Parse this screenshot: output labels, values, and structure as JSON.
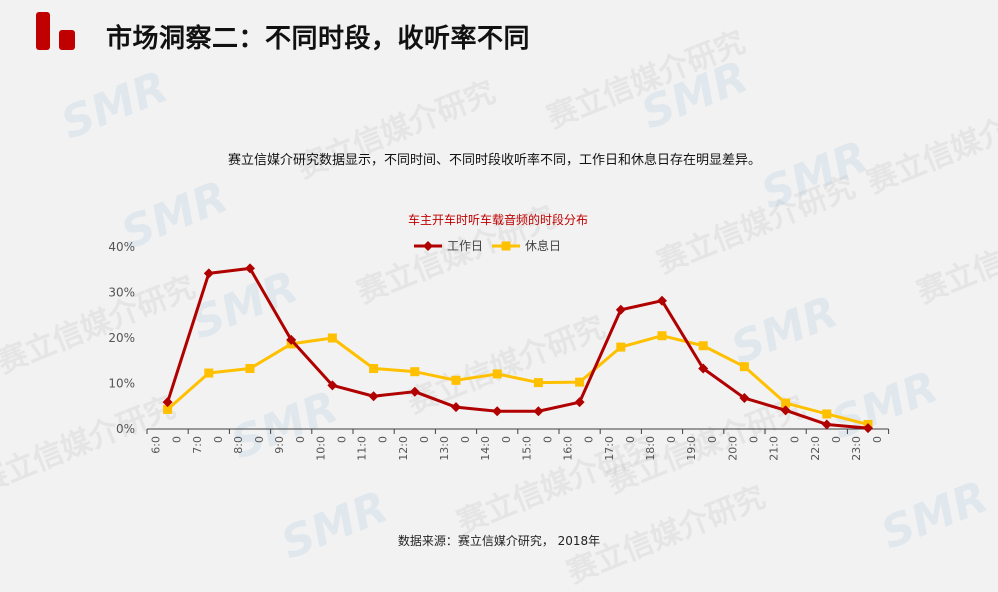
{
  "title": "市场洞察二：不同时段，收听率不同",
  "description": "赛立信媒介研究数据显示，不同时间、不同时段收听率不同，工作日和休息日存在明显差异。",
  "source": "数据来源：赛立信媒介研究，  2018年",
  "watermark": "赛立信媒介研究",
  "watermark_logo": "SMR",
  "colors": {
    "workday": "#b00000",
    "weekend": "#ffc000",
    "brand": "#c00000"
  },
  "chart_data": {
    "type": "line",
    "title": "车主开车时听车载音频的时段分布",
    "categories": [
      "6:00",
      "7:00",
      "8:00",
      "9:00",
      "10:00",
      "11:00",
      "12:00",
      "13:00",
      "14:00",
      "15:00",
      "16:00",
      "17:00",
      "18:00",
      "19:00",
      "20:00",
      "21:00",
      "22:00",
      "23:00"
    ],
    "series": [
      {
        "name": "工作日",
        "marker": "diamond",
        "values": [
          5.9,
          34.2,
          35.3,
          19.6,
          9.6,
          7.2,
          8.2,
          4.8,
          3.9,
          3.9,
          5.9,
          26.2,
          28.2,
          13.3,
          6.8,
          4.1,
          1.0,
          0.2
        ]
      },
      {
        "name": "休息日",
        "marker": "square",
        "values": [
          4.3,
          12.3,
          13.3,
          18.7,
          20.0,
          13.3,
          12.6,
          10.7,
          12.1,
          10.2,
          10.3,
          18.0,
          20.5,
          18.3,
          13.7,
          5.7,
          3.3,
          1.0
        ]
      }
    ],
    "ylim": [
      0,
      40
    ],
    "yticks": [
      "0%",
      "10%",
      "20%",
      "30%",
      "40%"
    ],
    "xtick_suffix": "0",
    "legend_position": "top",
    "grid": false
  }
}
